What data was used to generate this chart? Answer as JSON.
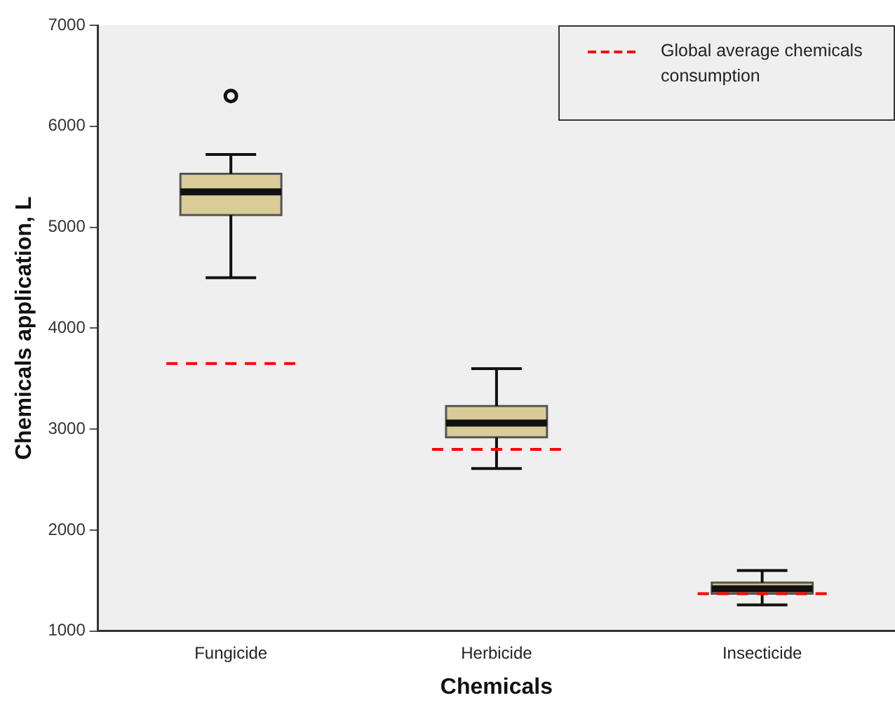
{
  "chart_data": {
    "type": "box",
    "xlabel": "Chemicals",
    "ylabel": "Chemicals application, L",
    "categories": [
      "Fungicide",
      "Herbicide",
      "Insecticide"
    ],
    "color": "#d9cc98",
    "boxes": [
      {
        "low": 4500,
        "q1": 5120,
        "median": 5350,
        "q3": 5530,
        "high": 5720,
        "outliers": [
          6300
        ]
      },
      {
        "low": 2610,
        "q1": 2920,
        "median": 3060,
        "q3": 3230,
        "high": 3600
      },
      {
        "low": 1260,
        "q1": 1370,
        "median": 1420,
        "q3": 1480,
        "high": 1600
      }
    ],
    "ref_lines": [
      {
        "axis": "y",
        "value": 3650,
        "label": "Global average chemicals consumption",
        "color": "#ff0000",
        "line_style": "dashed"
      },
      {
        "axis": "y",
        "value": 2800,
        "color": "#ff0000",
        "line_style": "dashed"
      },
      {
        "axis": "y",
        "value": 1370,
        "color": "#ff0000",
        "line_style": "dashed"
      }
    ],
    "ylim": [
      1000,
      7000
    ],
    "yticks": [
      1000,
      2000,
      3000,
      4000,
      5000,
      6000,
      7000
    ],
    "grid": false,
    "legend": "top right"
  }
}
